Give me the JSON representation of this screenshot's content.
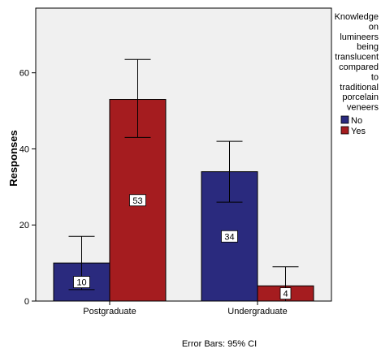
{
  "chart_data": {
    "type": "bar",
    "title": "",
    "xlabel": "",
    "ylabel": "Responses",
    "ylim": [
      0,
      77
    ],
    "yticks": [
      0,
      20,
      40,
      60
    ],
    "categories": [
      "Postgraduate",
      "Undergraduate"
    ],
    "series": [
      {
        "name": "No",
        "color": "#2a2a7e",
        "values": [
          10,
          34
        ],
        "ci_low": [
          3,
          26
        ],
        "ci_high": [
          17,
          42
        ]
      },
      {
        "name": "Yes",
        "color": "#a51c1f",
        "values": [
          53,
          4
        ],
        "ci_low": [
          43,
          0
        ],
        "ci_high": [
          63.5,
          9
        ]
      }
    ],
    "data_labels": [
      "10",
      "34",
      "53",
      "4"
    ],
    "legend": {
      "title_lines": [
        "Knowledge",
        "on",
        "lumineers",
        "being",
        "translucent",
        "compared",
        "to",
        "traditional",
        "porcelain",
        "veneers"
      ],
      "placement": "right"
    },
    "footnote": "Error Bars: 95% CI",
    "plot_background": "#f0f0f0",
    "grid": false
  }
}
